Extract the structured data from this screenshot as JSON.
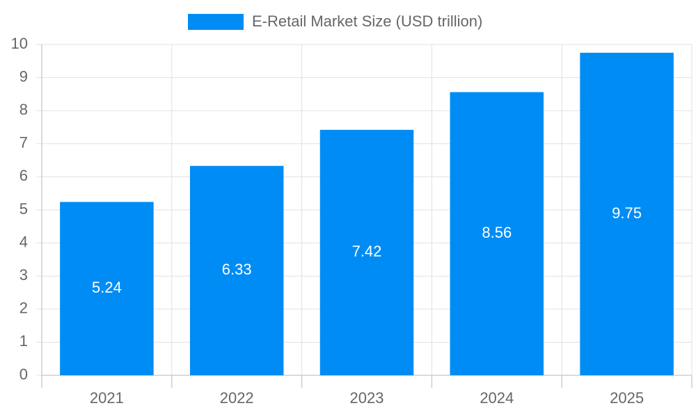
{
  "chart_data": {
    "type": "bar",
    "categories": [
      "2021",
      "2022",
      "2023",
      "2024",
      "2025"
    ],
    "series": [
      {
        "name": "E-Retail Market Size (USD trillion)",
        "color": "#008cf5",
        "values": [
          5.24,
          6.33,
          7.42,
          8.56,
          9.75
        ]
      }
    ],
    "ylim": [
      0,
      10
    ],
    "yticks": [
      0,
      1,
      2,
      3,
      4,
      5,
      6,
      7,
      8,
      9,
      10
    ],
    "grid": true,
    "legend": "top"
  }
}
